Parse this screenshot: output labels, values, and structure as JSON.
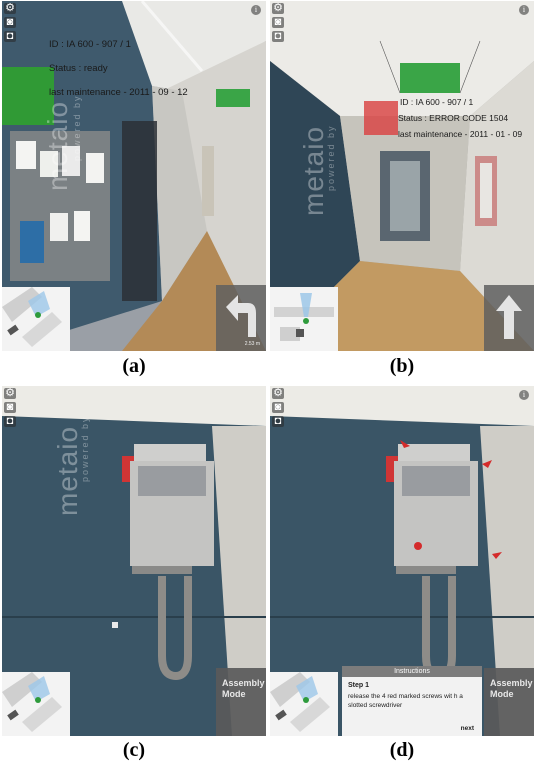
{
  "panels": {
    "a": {
      "caption": "(a)",
      "ar_lines": [
        "ID : IA 600 - 907 / 1",
        "Status : ready",
        "last maintenance - 2011 - 09 - 12"
      ],
      "distance": "2.53 m",
      "watermark_small": "powered by",
      "watermark_big": "metaio",
      "status_color": "#2fa12f"
    },
    "b": {
      "caption": "(b)",
      "ar_lines": [
        "ID : IA 600 - 907 / 1",
        "Status : ERROR CODE 1504",
        "last maintenance - 2011 - 01 - 09"
      ],
      "watermark_small": "powered by",
      "watermark_big": "metaio",
      "status_color": "#d94040"
    },
    "c": {
      "caption": "(c)",
      "watermark_small": "powered by",
      "watermark_big": "metaio",
      "mode_label_1": "Assembly",
      "mode_label_2": "Mode"
    },
    "d": {
      "caption": "(d)",
      "mode_label_1": "Assembly",
      "mode_label_2": "Mode",
      "instructions": {
        "header": "Instructions",
        "step": "Step 1",
        "body": "release the 4 red marked screws wit h a slotted screwdriver",
        "next": "next"
      }
    }
  },
  "colors": {
    "exit_sign": "#3aa547",
    "screw_marker": "#d42b2b",
    "tile": "#5f5f5f"
  },
  "icons": [
    "gear-icon",
    "camera-icon",
    "camera-switch-icon",
    "info-icon"
  ]
}
